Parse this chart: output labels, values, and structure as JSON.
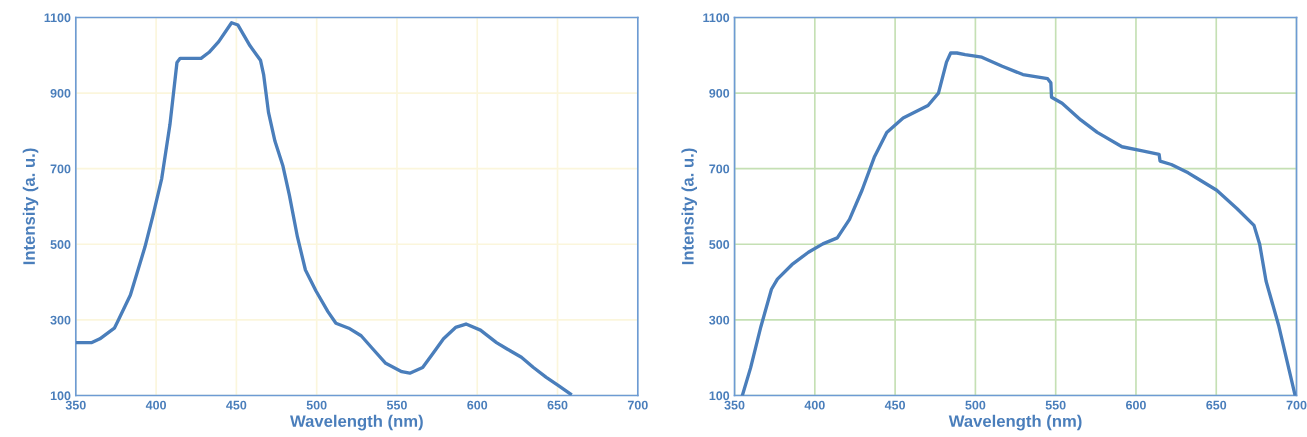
{
  "chart_data": [
    {
      "type": "line",
      "xlabel": "Wavelength (nm)",
      "ylabel": "Intensity (a. u.)",
      "xlim": [
        350,
        700
      ],
      "xticks": [
        350,
        400,
        450,
        500,
        550,
        600,
        650,
        700
      ],
      "ylim": [
        100,
        1100
      ],
      "yticks": [
        100,
        300,
        500,
        700,
        900,
        1100
      ],
      "grid": true,
      "marker": "none",
      "line_style": "solid",
      "series": [
        {
          "color": "#4a7ebb",
          "x": [
            351,
            360,
            365,
            374,
            376,
            384,
            393,
            398,
            403.5,
            408.6,
            413,
            415,
            428,
            433,
            439,
            447,
            451,
            458.5,
            465,
            467,
            470,
            474,
            479,
            483,
            488,
            493,
            499.5,
            507,
            512,
            520,
            527.7,
            535,
            543,
            553,
            558,
            566,
            572.5,
            579,
            586.5,
            593,
            602,
            612,
            618.6,
            627.5,
            635,
            643,
            650.6,
            658
          ],
          "values": [
            240,
            240,
            250,
            278,
            295,
            366,
            492,
            575,
            674,
            816,
            981,
            992,
            992,
            1008,
            1036,
            1086,
            1080,
            1025,
            987,
            948,
            849,
            773,
            707,
            630,
            520,
            432,
            377,
            322,
            291,
            278,
            258,
            223,
            185,
            163,
            159,
            174,
            212,
            250,
            280,
            289,
            273,
            240,
            223,
            201,
            174,
            148,
            126,
            104
          ]
        }
      ]
    },
    {
      "type": "line",
      "xlabel": "Wavelength (nm)",
      "ylabel": "Intensity (a. u.)",
      "xlim": [
        350,
        700
      ],
      "xticks": [
        350,
        400,
        450,
        500,
        550,
        600,
        650,
        700
      ],
      "ylim": [
        100,
        1100
      ],
      "yticks": [
        100,
        300,
        500,
        700,
        900,
        1100
      ],
      "grid": true,
      "marker": "none",
      "line_style": "solid",
      "series": [
        {
          "color": "#4a7ebb",
          "x": [
            355,
            360,
            366.4,
            373,
            376.7,
            385.7,
            396,
            405,
            414,
            421.6,
            429.4,
            437,
            444.8,
            455,
            470.5,
            477,
            482,
            484.6,
            488.5,
            493.6,
            504,
            516.7,
            529.6,
            545,
            547,
            547.4,
            554,
            565.6,
            575.9,
            591.3,
            604,
            614.4,
            615,
            622,
            632.5,
            637.5,
            650.3,
            663,
            673.5,
            677,
            681,
            689,
            699
          ],
          "values": [
            102,
            173,
            282,
            381,
            408,
            446,
            479,
            501,
            517,
            566,
            643,
            730,
            796,
            834,
            867,
            900,
            982,
            1006,
            1006,
            1002,
            995,
            971,
            949,
            938,
            927,
            889,
            873,
            829,
            796,
            758,
            747,
            738,
            720,
            711,
            689,
            676,
            643,
            594,
            550,
            501,
            403,
            283,
            102
          ]
        }
      ]
    }
  ]
}
